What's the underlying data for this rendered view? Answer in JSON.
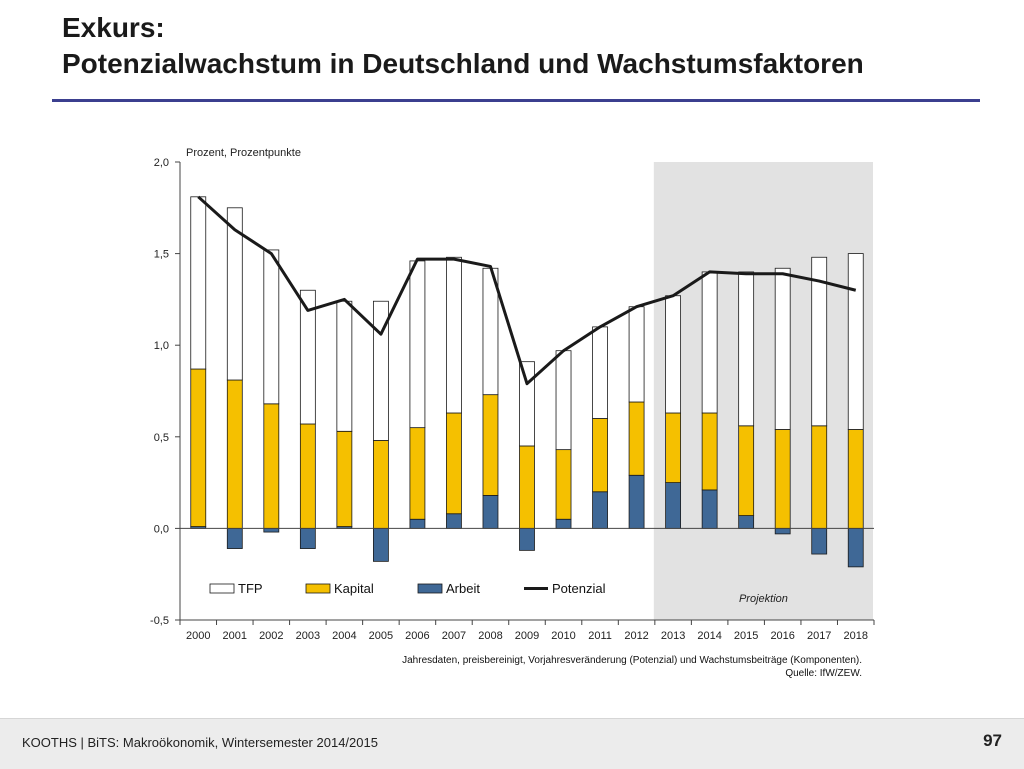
{
  "slide": {
    "title_line1": "Exkurs:",
    "title_line2": "Potenzialwachstum in Deutschland und Wachstumsfaktoren",
    "footer_text": "KOOTHS | BiTS: Makroökonomik, Wintersemester 2014/2015",
    "page_number": "97",
    "accent_color": "#3b3f8f"
  },
  "chart_data": {
    "type": "bar",
    "stacked": true,
    "unit_label": "Prozent, Prozentpunkte",
    "categories": [
      "2000",
      "2001",
      "2002",
      "2003",
      "2004",
      "2005",
      "2006",
      "2007",
      "2008",
      "2009",
      "2010",
      "2011",
      "2012",
      "2013",
      "2014",
      "2015",
      "2016",
      "2017",
      "2018"
    ],
    "ylim": [
      -0.5,
      2.0
    ],
    "yticks": [
      -0.5,
      0.0,
      0.5,
      1.0,
      1.5,
      2.0
    ],
    "ytick_labels": [
      "-0,5",
      "0,0",
      "0,5",
      "1,0",
      "1,5",
      "2,0"
    ],
    "grid": false,
    "series": [
      {
        "name": "Arbeit",
        "kind": "bar",
        "color": "#3f6896",
        "values": [
          0.01,
          -0.11,
          -0.02,
          -0.11,
          0.01,
          -0.18,
          0.05,
          0.08,
          0.18,
          -0.12,
          0.05,
          0.2,
          0.29,
          0.25,
          0.21,
          0.07,
          -0.03,
          -0.14,
          -0.21
        ]
      },
      {
        "name": "Kapital",
        "kind": "bar",
        "color": "#f5c000",
        "values": [
          0.86,
          0.81,
          0.68,
          0.57,
          0.52,
          0.48,
          0.5,
          0.55,
          0.55,
          0.45,
          0.38,
          0.4,
          0.4,
          0.38,
          0.42,
          0.49,
          0.54,
          0.56,
          0.54
        ]
      },
      {
        "name": "TFP",
        "kind": "bar",
        "color": "#ffffff",
        "values": [
          0.94,
          0.94,
          0.84,
          0.73,
          0.71,
          0.76,
          0.91,
          0.85,
          0.69,
          0.46,
          0.54,
          0.5,
          0.52,
          0.64,
          0.77,
          0.84,
          0.88,
          0.92,
          0.96
        ]
      },
      {
        "name": "Potenzial",
        "kind": "line",
        "color": "#1a1a1a",
        "values": [
          1.81,
          1.63,
          1.5,
          1.19,
          1.25,
          1.06,
          1.47,
          1.47,
          1.43,
          0.79,
          0.97,
          1.1,
          1.21,
          1.27,
          1.4,
          1.39,
          1.39,
          1.35,
          1.3
        ]
      }
    ],
    "legend": {
      "placement": "bottom-left",
      "order": [
        "TFP",
        "Kapital",
        "Arbeit",
        "Potenzial"
      ]
    },
    "projection": {
      "label": "Projektion",
      "from_category": "2013",
      "to_category": "2018",
      "color": "#e2e2e2"
    },
    "note_line1": "Jahresdaten,  preisbereinigt, Vorjahresveränderung (Potenzial) und Wachstumsbeiträge (Komponenten).",
    "note_line2": "Quelle: IfW/ZEW."
  }
}
